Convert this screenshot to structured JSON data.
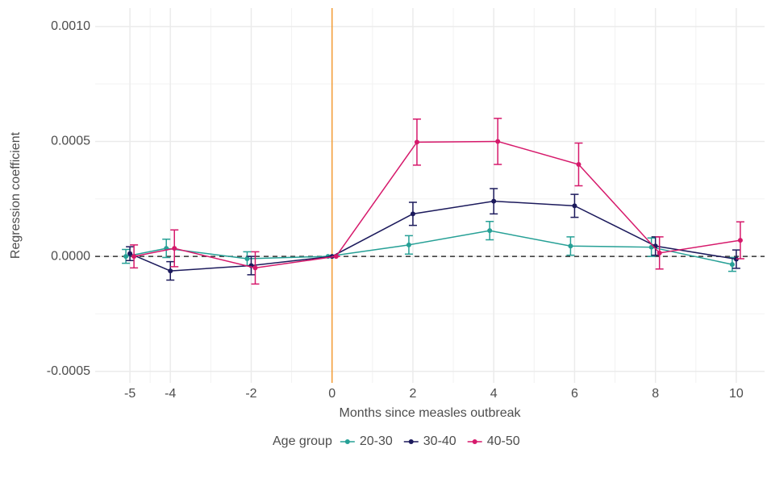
{
  "chart_data": {
    "type": "line",
    "x_label": "Months since measles outbreak",
    "y_label": "Regression coefficient",
    "legend_title": "Age group",
    "legend_position": "bottom",
    "grid": true,
    "xlim": [
      -5.86,
      10.7
    ],
    "ylim": [
      -0.00055,
      0.00108
    ],
    "xticks": [
      -5,
      -4,
      -2,
      0,
      2,
      4,
      6,
      8,
      10
    ],
    "yticks": [
      {
        "value": -0.0005,
        "label": "-0.0005"
      },
      {
        "value": 0,
        "label": "0.0000"
      },
      {
        "value": 0.0005,
        "label": "0.0005"
      },
      {
        "value": 0.001,
        "label": "0.0010"
      }
    ],
    "vline": 0,
    "vline_color": "#f39c34",
    "hline": 0,
    "x": [
      -5,
      -4,
      -2,
      0,
      2,
      4,
      6,
      8,
      10
    ],
    "series": [
      {
        "name": "20-30",
        "color": "#26a096",
        "values": [
          0,
          3.5e-05,
          -1e-05,
          0,
          5e-05,
          0.000112,
          4.5e-05,
          4e-05,
          -3.5e-05
        ],
        "errors": [
          3e-05,
          4e-05,
          3e-05,
          0,
          4e-05,
          4e-05,
          4e-05,
          4e-05,
          3e-05
        ]
      },
      {
        "name": "30-40",
        "color": "#1c1a5c",
        "values": [
          1.2e-05,
          -6.3e-05,
          -4e-05,
          0,
          0.000185,
          0.00024,
          0.00022,
          4.5e-05,
          -1.2e-05
        ],
        "errors": [
          3e-05,
          4e-05,
          4e-05,
          0,
          5e-05,
          5.5e-05,
          5e-05,
          4e-05,
          4e-05
        ]
      },
      {
        "name": "40-50",
        "color": "#d6196b",
        "values": [
          0,
          3.5e-05,
          -5e-05,
          0,
          0.000497,
          0.0005,
          0.0004,
          1.5e-05,
          7e-05
        ],
        "errors": [
          5e-05,
          8e-05,
          7e-05,
          0,
          0.0001,
          0.0001,
          9.3e-05,
          7e-05,
          8e-05
        ]
      }
    ]
  }
}
